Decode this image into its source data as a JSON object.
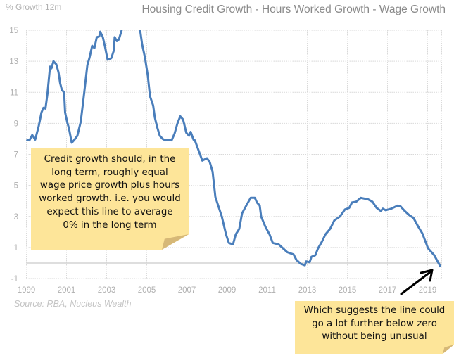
{
  "chart_data": {
    "type": "line",
    "title": "Housing Credit Growth - Hours Worked Growth - Wage Growth",
    "ylabel": "% Growth 12m",
    "xlabel": "",
    "source": "Source: RBA, Nucleus Wealth",
    "xlim": [
      1999,
      2019.7
    ],
    "ylim": [
      -1,
      15
    ],
    "yticks": [
      -1,
      1,
      3,
      5,
      7,
      9,
      11,
      13,
      15
    ],
    "xticks": [
      "1999",
      "2001",
      "2003",
      "2005",
      "2007",
      "2009",
      "2011",
      "2013",
      "2015",
      "2017",
      "2019"
    ],
    "grid": true,
    "line_color": "#4a7ebb",
    "series": [
      {
        "name": "Housing Credit Growth - Hours Worked Growth - Wage Growth",
        "x": [
          1999.0,
          1999.15,
          1999.29,
          1999.44,
          1999.61,
          1999.75,
          1999.85,
          1999.95,
          2000.05,
          2000.18,
          2000.25,
          2000.35,
          2000.49,
          2000.6,
          2000.68,
          2000.77,
          2000.88,
          2000.93,
          2001.05,
          2001.12,
          2001.26,
          2001.4,
          2001.54,
          2001.71,
          2001.85,
          2002.04,
          2002.14,
          2002.28,
          2002.39,
          2002.51,
          2002.63,
          2002.68,
          2002.81,
          2002.91,
          2003.05,
          2003.23,
          2003.36,
          2003.4,
          2003.51,
          2003.61,
          2003.75,
          2003.93,
          2004.21,
          2004.46,
          2004.67,
          2004.77,
          2004.91,
          2005.05,
          2005.16,
          2005.32,
          2005.4,
          2005.51,
          2005.65,
          2005.79,
          2005.93,
          2006.09,
          2006.24,
          2006.39,
          2006.53,
          2006.67,
          2006.81,
          2006.97,
          2007.11,
          2007.19,
          2007.33,
          2007.4,
          2007.77,
          2008.0,
          2008.14,
          2008.28,
          2008.42,
          2008.74,
          2008.95,
          2009.09,
          2009.3,
          2009.44,
          2009.61,
          2009.75,
          2009.96,
          2010.18,
          2010.39,
          2010.49,
          2010.63,
          2010.7,
          2010.91,
          2011.12,
          2011.28,
          2011.58,
          2011.79,
          2012.0,
          2012.32,
          2012.46,
          2012.67,
          2012.88,
          2012.95,
          2013.12,
          2013.21,
          2013.4,
          2013.54,
          2013.74,
          2013.91,
          2014.14,
          2014.35,
          2014.63,
          2014.88,
          2015.09,
          2015.23,
          2015.44,
          2015.67,
          2016.04,
          2016.25,
          2016.46,
          2016.67,
          2016.77,
          2016.91,
          2017.19,
          2017.51,
          2017.65,
          2017.86,
          2018.07,
          2018.3,
          2018.53,
          2018.74,
          2019.02,
          2019.33,
          2019.65
        ],
        "y": [
          7.95,
          7.9,
          8.25,
          7.95,
          8.8,
          9.7,
          10.0,
          9.95,
          10.9,
          12.65,
          12.55,
          13.0,
          12.8,
          12.3,
          11.6,
          11.15,
          11.0,
          9.7,
          9.0,
          8.7,
          7.75,
          7.95,
          8.2,
          9.1,
          10.6,
          12.75,
          13.2,
          14.0,
          13.85,
          14.55,
          14.6,
          14.9,
          14.55,
          14.0,
          13.1,
          13.2,
          13.7,
          14.55,
          14.3,
          14.4,
          15.0,
          16.0,
          16.6,
          16.0,
          15.0,
          14.1,
          13.25,
          12.1,
          10.75,
          10.15,
          9.4,
          8.8,
          8.2,
          8.0,
          7.9,
          7.95,
          7.9,
          8.35,
          9.0,
          9.45,
          9.25,
          8.4,
          8.2,
          8.45,
          7.95,
          7.9,
          6.6,
          6.75,
          6.5,
          5.9,
          4.25,
          3.0,
          1.85,
          1.3,
          1.2,
          1.85,
          2.2,
          3.2,
          3.7,
          4.2,
          4.2,
          3.9,
          3.7,
          3.0,
          2.35,
          1.85,
          1.3,
          1.2,
          0.95,
          0.7,
          0.55,
          0.2,
          -0.05,
          -0.15,
          0.1,
          0.05,
          0.4,
          0.5,
          0.95,
          1.4,
          1.85,
          2.2,
          2.75,
          3.0,
          3.45,
          3.55,
          3.9,
          3.95,
          4.2,
          4.1,
          3.95,
          3.55,
          3.35,
          3.5,
          3.4,
          3.5,
          3.7,
          3.65,
          3.35,
          3.1,
          2.9,
          2.35,
          1.9,
          0.95,
          0.5,
          -0.25
        ]
      }
    ]
  },
  "annotations": {
    "note1": "Credit growth should, in the long term, roughly equal wage price growth plus hours worked growth. i.e. you would expect this line to average 0% in the long term",
    "note2": "Which suggests the line could go a lot further below zero without being unusual",
    "note_color": "#fde599"
  }
}
